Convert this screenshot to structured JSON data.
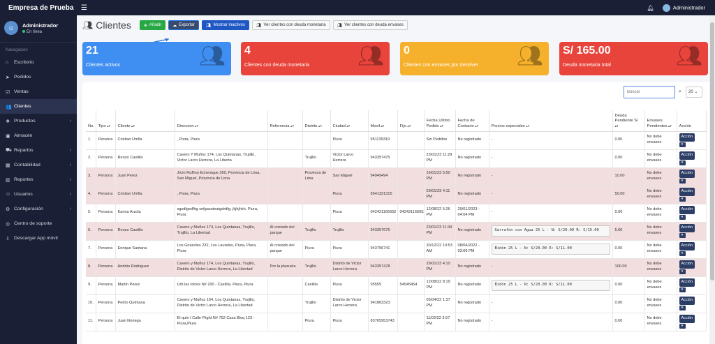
{
  "app": {
    "brand": "Empresa de Prueba",
    "user_label": "Administrador"
  },
  "sidebar": {
    "user_name": "Administrador",
    "user_status": "En línea",
    "nav_header": "Navegación",
    "items": [
      {
        "label": "Escritorio",
        "icon": "home-icon",
        "glyph": "⌂",
        "chev": false,
        "active": false
      },
      {
        "label": "Pedidos",
        "icon": "send-icon",
        "glyph": "➤",
        "chev": false,
        "active": false
      },
      {
        "label": "Ventas",
        "icon": "check-square-icon",
        "glyph": "☑",
        "chev": false,
        "active": false
      },
      {
        "label": "Clientes",
        "icon": "users-icon",
        "glyph": "👥",
        "chev": false,
        "active": true
      },
      {
        "label": "Productos",
        "icon": "box-icon",
        "glyph": "❖",
        "chev": true,
        "active": false
      },
      {
        "label": "Almacén",
        "icon": "warehouse-icon",
        "glyph": "▣",
        "chev": false,
        "active": false
      },
      {
        "label": "Repartos",
        "icon": "truck-icon",
        "glyph": "⛟",
        "chev": true,
        "active": false
      },
      {
        "label": "Contabilidad",
        "icon": "calculator-icon",
        "glyph": "▦",
        "chev": true,
        "active": false
      },
      {
        "label": "Reportes",
        "icon": "bar-chart-icon",
        "glyph": "▥",
        "chev": true,
        "active": false
      },
      {
        "label": "Usuarios",
        "icon": "user-icon",
        "glyph": "☺",
        "chev": true,
        "active": false
      },
      {
        "label": "Configuración",
        "icon": "gear-icon",
        "glyph": "⚙",
        "chev": true,
        "active": false
      },
      {
        "label": "Centro de soporte",
        "icon": "support-icon",
        "glyph": "◎",
        "chev": false,
        "active": false
      },
      {
        "label": "Descargar App móvil",
        "icon": "download-icon",
        "glyph": "⇩",
        "chev": false,
        "active": false
      }
    ]
  },
  "header": {
    "title": "Clientes",
    "buttons": {
      "add": "Añadir",
      "export": "Exportar",
      "inactive": "Mostrar inactivos",
      "debt_money": "Ver clientes con deuda monetaria",
      "debt_containers": "Ver clientes con deuda envases"
    }
  },
  "cards": [
    {
      "value": "21",
      "label": "Clientes activos",
      "color": "#3f8ef1"
    },
    {
      "value": "4",
      "label": "Clientes con deuda monetaria",
      "color": "#e8443b"
    },
    {
      "value": "0",
      "label": "Clientes con envases por devolver",
      "color": "#f6b12c"
    },
    {
      "value": "S/ 165.00",
      "label": "Deuda monetaria total",
      "color": "#e8443b"
    }
  ],
  "table_controls": {
    "search_placeholder": "Buscar",
    "page_size": "20"
  },
  "table": {
    "columns": [
      "No.",
      "Tipo",
      "Cliente",
      "Direccion",
      "Referencia",
      "Distrito",
      "Ciudad",
      "Movil",
      "Fijo",
      "Fecha Ultimo Pedido",
      "Fecha de Contacto",
      "Precios especiales",
      "Deuda Pendiente S/",
      "Envases Pendientes",
      "Acción"
    ],
    "sortable": [
      false,
      true,
      true,
      true,
      true,
      true,
      true,
      true,
      true,
      true,
      true,
      true,
      true,
      true,
      false
    ],
    "action_label": "Acción",
    "rows": [
      {
        "shade": "white",
        "cells": [
          "1.",
          "Persona",
          "Cristian Urrilla",
          ", Piura, Piura",
          "",
          "",
          "Piura",
          "951139319",
          "",
          "Sin Pedidos",
          "No registrado",
          "-",
          "0.00",
          "No debe envases"
        ],
        "precio_box": false
      },
      {
        "shade": "white",
        "cells": [
          "2.",
          "Persona",
          "Renzo Castillo",
          "Cavero Y Muñoz 174, Los Quintanas, Trujillo, Victor Larco Herrera, La Liberta",
          "",
          "Trujillo",
          "Victor Larco Herrera",
          "943357475",
          "",
          "23/01/23 11:29 PM",
          "No registrado",
          "-",
          "0.00",
          "No debe envases"
        ],
        "precio_box": false
      },
      {
        "shade": "shaded",
        "cells": [
          "3.",
          "Persona",
          "Juan Perez",
          "Jirón Ruffino Echenique 260, Provincia de Lima, San Miguel, Provincia de Lima",
          "",
          "Provincia de Lima",
          "San Miguel",
          "94949494",
          "",
          "16/01/23 5:50 PM",
          "No registrado",
          "-",
          "10.00",
          "No debe envases"
        ],
        "precio_box": false
      },
      {
        "shade": "shaded",
        "cells": [
          "4.",
          "Persona",
          "Cristian Urrilla",
          ", Piura, Piura",
          "",
          "",
          "Piura",
          "9541321315",
          "",
          "29/01/23 4:11 PM",
          "No registrado",
          "-",
          "50.00",
          "No debe envases"
        ],
        "precio_box": false
      },
      {
        "shade": "white",
        "cells": [
          "5.",
          "Persona",
          "Karina Arzola",
          "sgsdfgsdfhg sefgaseteatgdrdfg, jkjhjhkh, Piura, Piura",
          "",
          "",
          "Piura",
          "042421165652",
          "042421165652",
          "12/08/22 5:26 PM",
          "29/01/2023 - 04:04 PM",
          "-",
          "0.00",
          "No debe envases"
        ],
        "precio_box": false
      },
      {
        "shade": "shaded",
        "cells": [
          "6.",
          "Persona",
          "Renzo Castillo",
          "Cavero y Muñoz 174, Los Quintanas, Trujillo, Trujillo, La Libertad",
          "Al costado del parque",
          "Trujillo",
          "Trujillo",
          "943357675",
          "",
          "23/01/23 11:34 PM",
          "No registrado",
          "Garrafón con Agua 25 L -  N: S/20.00 R: S/15.00",
          "5.00",
          "No debe envases"
        ],
        "precio_box": true
      },
      {
        "shade": "white",
        "cells": [
          "7.",
          "Persona",
          "Enrique Santana",
          "Los Girasoles 232, Los Laureles, Piura, Piura, Piura",
          "Al costado del parque",
          "Piura",
          "Piura",
          "943756741",
          "",
          "30/12/22 10:53 AM",
          "08/04/2022 - 03:06 PM",
          "Bidón 25 L -  N: S/20.00 R: S/11.00",
          "0.00",
          "No debe envases"
        ],
        "precio_box": true
      },
      {
        "shade": "shaded",
        "cells": [
          "8.",
          "Persona",
          "Andrés Rodriguez",
          "Cavero y Muñoz 174, Los Quintanas, Trujillo, Distrito de Victor Larco Herrera, La Libertad",
          "Por la plazuela",
          "Trujillo",
          "Distrito de Victor Larco Herrera",
          "943357478",
          "",
          "29/01/23 4:10 PM",
          "No registrado",
          "-",
          "100.00",
          "No debe envases"
        ],
        "precio_box": false
      },
      {
        "shade": "white",
        "cells": [
          "9.",
          "Persona",
          "Martin Perez",
          "Urb las torres N# 200 - Castilla, Piura, Piura",
          "",
          "Castilla",
          "Piura",
          "95555",
          "54545454",
          "12/08/22 8:19 PM",
          "No registrado",
          "Bidón 25 L -  N: S/20.00 R: S/11.00",
          "0.00",
          "No debe envases"
        ],
        "precio_box": true
      },
      {
        "shade": "white",
        "cells": [
          "10.",
          "Persona",
          "Pedro Quintana",
          "Cavero y Muñoz 164, Los Quintanas, Trujillo, Distrito de Victor Larco Herrera, La Libertad",
          "",
          "Trujillo",
          "Distrito de Victor Larco Herrera",
          "941863323",
          "",
          "05/04/22 1:37 PM",
          "No registrado",
          "-",
          "0.00",
          "No debe envases"
        ],
        "precio_box": false
      },
      {
        "shade": "white",
        "cells": [
          "11.",
          "Persona",
          "Juan Noriega",
          "El quin I Calle Flight N# 752 Casa Bloq 123 - Piura,Piura",
          "",
          "Piura",
          "Piura",
          "83765953743",
          "",
          "11/02/22 3:57 PM",
          "No registrado",
          "-",
          "0.00",
          "No debe envases"
        ],
        "precio_box": false
      }
    ]
  }
}
